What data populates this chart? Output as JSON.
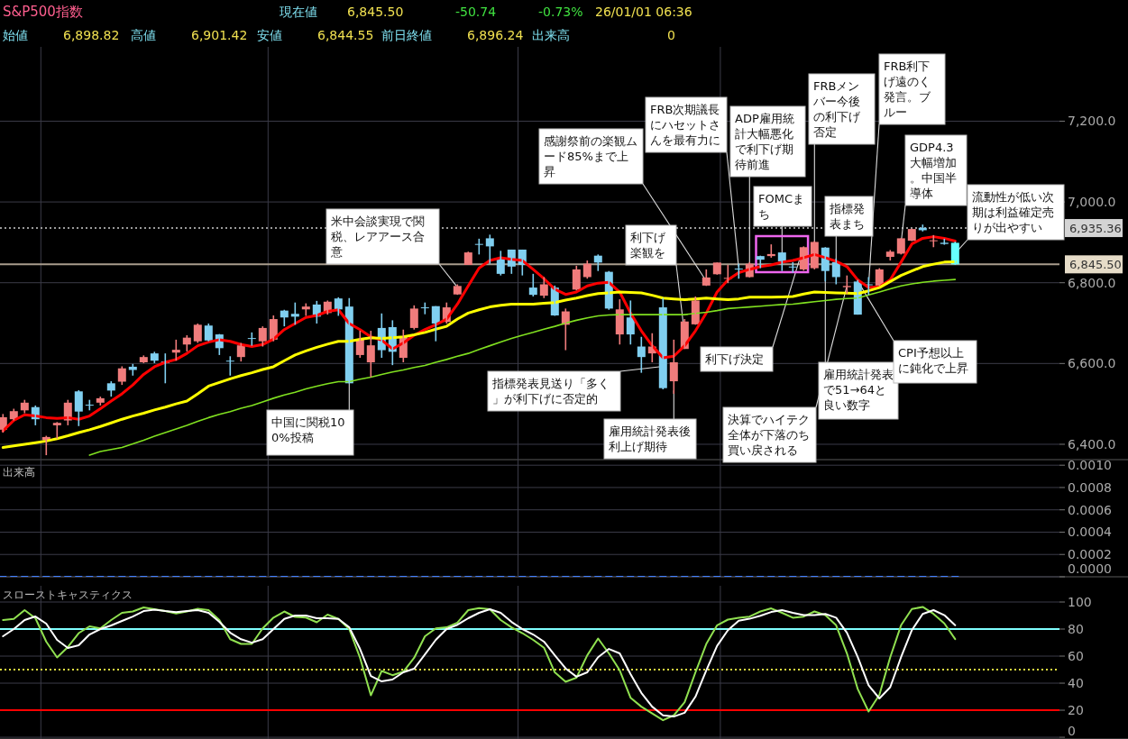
{
  "chart_data": [
    {
      "type": "candlestick",
      "title": "S&P500指数",
      "categories": [
        null,
        null,
        null,
        null,
        null,
        null,
        null,
        null,
        null,
        null,
        null,
        null,
        null,
        null,
        null,
        null,
        null,
        null,
        null,
        null,
        null,
        null,
        null,
        null,
        null,
        null,
        null,
        null,
        null,
        null,
        null,
        null,
        null,
        null,
        null,
        null,
        null,
        null,
        null,
        null,
        null,
        null,
        null,
        null,
        null,
        null,
        null,
        null,
        null,
        null,
        null,
        null,
        null,
        null,
        null,
        null,
        null,
        null,
        null,
        null,
        null,
        null,
        null,
        null,
        null,
        null,
        null,
        null,
        null,
        null,
        null,
        null,
        null,
        null,
        null,
        null,
        null,
        null,
        null,
        null,
        null,
        null,
        null,
        null,
        null,
        null,
        null,
        null,
        null
      ],
      "ohlc": [
        [
          6436,
          6475,
          6429,
          6467
        ],
        [
          6462,
          6488,
          6459,
          6482
        ],
        [
          6484,
          6510,
          6477,
          6503
        ],
        [
          6492,
          6496,
          6447,
          6462
        ],
        [
          6410,
          6421,
          6373,
          6418
        ],
        [
          6447,
          6455,
          6414,
          6453
        ],
        [
          6459,
          6510,
          6447,
          6503
        ],
        [
          6531,
          6534,
          6445,
          6481
        ],
        [
          6498,
          6510,
          6484,
          6496
        ],
        [
          6503,
          6518,
          6496,
          6514
        ],
        [
          6551,
          6556,
          6518,
          6533
        ],
        [
          6555,
          6593,
          6547,
          6588
        ],
        [
          6592,
          6599,
          6570,
          6584
        ],
        [
          6603,
          6620,
          6601,
          6616
        ],
        [
          6625,
          6629,
          6601,
          6607
        ],
        [
          6605,
          6625,
          6551,
          6601
        ],
        [
          6627,
          6659,
          6607,
          6634
        ],
        [
          6647,
          6670,
          6630,
          6664
        ],
        [
          6655,
          6699,
          6651,
          6696
        ],
        [
          6694,
          6699,
          6655,
          6657
        ],
        [
          6672,
          6673,
          6621,
          6638
        ],
        [
          6607,
          6618,
          6570,
          6605
        ],
        [
          6616,
          6651,
          6605,
          6645
        ],
        [
          6663,
          6677,
          6644,
          6661
        ],
        [
          6655,
          6692,
          6642,
          6688
        ],
        [
          6659,
          6719,
          6655,
          6710
        ],
        [
          6731,
          6733,
          6692,
          6714
        ],
        [
          6723,
          6751,
          6696,
          6716
        ],
        [
          6734,
          6749,
          6718,
          6741
        ],
        [
          6746,
          6755,
          6699,
          6716
        ],
        [
          6725,
          6756,
          6721,
          6753
        ],
        [
          6761,
          6764,
          6718,
          6734
        ],
        [
          6741,
          6762,
          6551,
          6551
        ],
        [
          6621,
          6681,
          6614,
          6659
        ],
        [
          6603,
          6681,
          6566,
          6645
        ],
        [
          6688,
          6724,
          6614,
          6633
        ],
        [
          6690,
          6707,
          6596,
          6629
        ],
        [
          6614,
          6684,
          6603,
          6666
        ],
        [
          6688,
          6744,
          6684,
          6736
        ],
        [
          6739,
          6751,
          6722,
          6737
        ],
        [
          6742,
          6742,
          6655,
          6699
        ],
        [
          6703,
          6751,
          6699,
          6739
        ],
        [
          6771,
          6796,
          6770,
          6792
        ],
        [
          6844,
          6877,
          6844,
          6875
        ],
        [
          6896,
          6909,
          6870,
          6894
        ],
        [
          6910,
          6919,
          6847,
          6890
        ],
        [
          6859,
          6879,
          6818,
          6822
        ],
        [
          6882,
          6882,
          6822,
          6840
        ],
        [
          6882,
          6882,
          6818,
          6844
        ],
        [
          6788,
          6822,
          6766,
          6770
        ],
        [
          6768,
          6814,
          6762,
          6796
        ],
        [
          6788,
          6793,
          6718,
          6719
        ],
        [
          6696,
          6736,
          6633,
          6729
        ],
        [
          6783,
          6842,
          6781,
          6833
        ],
        [
          6814,
          6855,
          6810,
          6847
        ],
        [
          6867,
          6870,
          6829,
          6850
        ],
        [
          6827,
          6829,
          6733,
          6736
        ],
        [
          6672,
          6759,
          6647,
          6734
        ],
        [
          6714,
          6756,
          6647,
          6672
        ],
        [
          6642,
          6666,
          6577,
          6616
        ],
        [
          6625,
          6675,
          6603,
          6642
        ],
        [
          6739,
          6762,
          6536,
          6539
        ],
        [
          6556,
          6659,
          6525,
          6603
        ],
        [
          6636,
          6710,
          6636,
          6704
        ],
        [
          6697,
          6766,
          6696,
          6756
        ],
        [
          6793,
          6833,
          6792,
          6813
        ],
        [
          6821,
          6850,
          6820,
          6850
        ],
        [
          6811,
          6844,
          6799,
          6812
        ],
        [
          6835,
          6847,
          6810,
          6833
        ],
        [
          6814,
          6851,
          6813,
          6847
        ],
        [
          6866,
          6867,
          6836,
          6857
        ],
        [
          6866,
          6895,
          6862,
          6871
        ],
        [
          6875,
          6875,
          6829,
          6853
        ],
        [
          6840,
          6851,
          6825,
          6839
        ],
        [
          6833,
          6890,
          6830,
          6888
        ],
        [
          6836,
          6903,
          6833,
          6901
        ],
        [
          6887,
          6888,
          6803,
          6829
        ],
        [
          6851,
          6860,
          6796,
          6814
        ],
        [
          6789,
          6818,
          6773,
          6792
        ],
        [
          6803,
          6807,
          6721,
          6721
        ],
        [
          6796,
          6814,
          6770,
          6795
        ],
        [
          6793,
          6836,
          6792,
          6833
        ],
        [
          6864,
          6881,
          6855,
          6877
        ],
        [
          6872,
          6910,
          6870,
          6910
        ],
        [
          6904,
          6934,
          6903,
          6933
        ],
        [
          6936,
          6944,
          6927,
          6930
        ],
        [
          6903,
          6918,
          6888,
          6905
        ],
        [
          6899,
          6909,
          6894,
          6896
        ],
        [
          6898.82,
          6901.42,
          6844.55,
          6845.5
        ]
      ],
      "colors": [
        "#f07c7c",
        "#f07c7c",
        "#f07c7c",
        "#80cff0",
        "#f07c7c",
        "#f07c7c",
        "#f07c7c",
        "#80cff0",
        "#80cff0",
        "#f07c7c",
        "#80cff0",
        "#f07c7c",
        "#80cff0",
        "#f07c7c",
        "#80cff0",
        "#80cff0",
        "#f07c7c",
        "#f07c7c",
        "#f07c7c",
        "#80cff0",
        "#80cff0",
        "#80cff0",
        "#f07c7c",
        "#80cff0",
        "#f07c7c",
        "#f07c7c",
        "#80cff0",
        "#80cff0",
        "#f07c7c",
        "#80cff0",
        "#f07c7c",
        "#80cff0",
        "#80cff0",
        "#f07c7c",
        "#f07c7c",
        "#80cff0",
        "#80cff0",
        "#f07c7c",
        "#f07c7c",
        "#80cff0",
        "#80cff0",
        "#f07c7c",
        "#f07c7c",
        "#f07c7c",
        "#80cff0",
        "#80cff0",
        "#80cff0",
        "#80cff0",
        "#80cff0",
        "#80cff0",
        "#f07c7c",
        "#80cff0",
        "#f07c7c",
        "#f07c7c",
        "#f07c7c",
        "#80cff0",
        "#80cff0",
        "#f07c7c",
        "#80cff0",
        "#80cff0",
        "#f07c7c",
        "#80cff0",
        "#f07c7c",
        "#f07c7c",
        "#f07c7c",
        "#f07c7c",
        "#f07c7c",
        "#f07c7c",
        "#80cff0",
        "#f07c7c",
        "#80cff0",
        "#f07c7c",
        "#80cff0",
        "#80cff0",
        "#f07c7c",
        "#f07c7c",
        "#80cff0",
        "#80cff0",
        "#f07c7c",
        "#80cff0",
        "#80cff0",
        "#f07c7c",
        "#f07c7c",
        "#f07c7c",
        "#f07c7c",
        "#80cff0",
        "#f07c7c",
        "#80cff0",
        "#66ffff"
      ],
      "series": [
        {
          "type": "line",
          "color": "#ff0000",
          "values": [
            6433,
            6459,
            6473,
            6470,
            6466,
            6464,
            6466,
            6462,
            6470,
            6488,
            6507,
            6525,
            6547,
            6573,
            6592,
            6603,
            6610,
            6625,
            6644,
            6653,
            6659,
            6655,
            6647,
            6642,
            6647,
            6660,
            6684,
            6699,
            6714,
            6719,
            6729,
            6733,
            6699,
            6684,
            6666,
            6658,
            6636,
            6651,
            6670,
            6684,
            6696,
            6710,
            6747,
            6792,
            6836,
            6855,
            6862,
            6858,
            6855,
            6833,
            6810,
            6784,
            6771,
            6777,
            6792,
            6799,
            6801,
            6777,
            6725,
            6681,
            6644,
            6614,
            6618,
            6644,
            6681,
            6725,
            6777,
            6807,
            6825,
            6833,
            6840,
            6844,
            6851,
            6855,
            6862,
            6870,
            6862,
            6853,
            6840,
            6807,
            6788,
            6790,
            6807,
            6851,
            6896,
            6910,
            6914,
            6910,
            6903
          ]
        },
        {
          "type": "line",
          "color": "#ffff00",
          "values": [
            6392,
            6396,
            6400,
            6404,
            6408,
            6414,
            6421,
            6429,
            6436,
            6444,
            6453,
            6462,
            6470,
            6477,
            6485,
            6492,
            6500,
            6507,
            6525,
            6544,
            6553,
            6562,
            6570,
            6577,
            6585,
            6592,
            6607,
            6621,
            6631,
            6640,
            6648,
            6655,
            6655,
            6660,
            6664,
            6662,
            6664,
            6666,
            6671,
            6677,
            6685,
            6692,
            6710,
            6725,
            6733,
            6740,
            6744,
            6747,
            6747,
            6747,
            6749,
            6751,
            6757,
            6762,
            6768,
            6773,
            6775,
            6777,
            6776,
            6775,
            6769,
            6762,
            6760,
            6758,
            6760,
            6762,
            6760,
            6758,
            6760,
            6764,
            6764,
            6764,
            6765,
            6766,
            6772,
            6777,
            6776,
            6775,
            6774,
            6773,
            6780,
            6788,
            6803,
            6818,
            6829,
            6840,
            6846,
            6851,
            6852
          ]
        },
        {
          "type": "line",
          "color": "#80e020",
          "values": [
            null,
            null,
            null,
            null,
            null,
            null,
            null,
            null,
            6373,
            6382,
            6387,
            6392,
            6401,
            6410,
            6420,
            6429,
            6438,
            6447,
            6457,
            6466,
            6474,
            6481,
            6489,
            6496,
            6505,
            6514,
            6522,
            6529,
            6537,
            6544,
            6550,
            6555,
            6555,
            6561,
            6566,
            6573,
            6579,
            6584,
            6590,
            6595,
            6603,
            6610,
            6618,
            6625,
            6635,
            6644,
            6653,
            6662,
            6670,
            6677,
            6685,
            6692,
            6700,
            6707,
            6713,
            6718,
            6720,
            6721,
            6721,
            6721,
            6721,
            6721,
            6721,
            6721,
            6724,
            6727,
            6731,
            6736,
            6738,
            6740,
            6742,
            6744,
            6746,
            6747,
            6750,
            6753,
            6756,
            6759,
            6761,
            6762,
            6770,
            6777,
            6785,
            6792,
            6797,
            6801,
            6804,
            6806,
            6808
          ]
        }
      ],
      "ylim": [
        6362,
        7384
      ],
      "yticks": [
        {
          "value": 6400,
          "label": "6,400.0"
        },
        {
          "value": 6600,
          "label": "6,600.0"
        },
        {
          "value": 6800,
          "label": "6,800.0"
        },
        {
          "value": 7000,
          "label": "7,000.0"
        },
        {
          "value": 7200,
          "label": "7,200.0"
        }
      ],
      "grid": true,
      "ref_lines": [
        {
          "axis": "y",
          "value": 6935.36,
          "label": "6,935.36",
          "color": "#9a9a9a",
          "line_style": "dotted"
        },
        {
          "axis": "y",
          "value": 6845.5,
          "label": "6,845.50",
          "color": "#a89c8c",
          "line_style": "solid"
        }
      ],
      "annotations": [
        "現在値",
        "6,845.50",
        "-50.74",
        "-0.73%",
        "26/01/01 06:36",
        "始値",
        "6,898.82",
        "高値",
        "6,901.42",
        "安値",
        "6,844.55",
        "前日終値",
        "6,896.24",
        "出来高",
        "0",
        "米中会談実現で関税、レアアース合意",
        "中国に関税100%投稿",
        "感謝祭前の楽観ムード85%まで上昇",
        "FRB次期議長にハセットさんを最有力に",
        "ADP雇用統計大幅悪化で利下げ期待前進",
        "FRBメンバー今後の利下げ否定",
        "FRB利下げ遠のく発言。ブルー",
        "GDP4.3大幅増加。中国半導体",
        "FOMCまち",
        "指標発表まち",
        "流動性が低い次期は利益確定売りが出やすい",
        "利下げ楽観を",
        "利下げ決定",
        "指標発表見送り「多く」が利下げに否定的",
        "雇用統計発表後利上げ期待",
        "決算でハイテク全体が下落のち買い戻される",
        "雇用統計発表で51→64と良い数字",
        "CPI予想以上に鈍化で上昇"
      ]
    },
    {
      "type": "bar",
      "title": "出来高",
      "color": "#4080ff",
      "categories": [
        null,
        null,
        null,
        null,
        null,
        null,
        null,
        null,
        null,
        null,
        null,
        null,
        null,
        null,
        null,
        null,
        null,
        null,
        null,
        null,
        null,
        null,
        null,
        null,
        null,
        null,
        null,
        null,
        null,
        null,
        null,
        null,
        null,
        null,
        null,
        null,
        null,
        null,
        null,
        null,
        null,
        null,
        null,
        null,
        null,
        null,
        null,
        null,
        null,
        null,
        null,
        null,
        null,
        null,
        null,
        null,
        null,
        null,
        null,
        null,
        null,
        null,
        null,
        null,
        null,
        null,
        null,
        null,
        null,
        null,
        null,
        null,
        null,
        null,
        null,
        null,
        null,
        null,
        null,
        null,
        null,
        null,
        null,
        null,
        null,
        null,
        null,
        null,
        null
      ],
      "values": [
        0,
        0,
        0,
        0,
        0,
        0,
        0,
        0,
        0,
        0,
        0,
        0,
        0,
        0,
        0,
        0,
        0,
        0,
        0,
        0,
        0,
        0,
        0,
        0,
        0,
        0,
        0,
        0,
        0,
        0,
        0,
        0,
        0,
        0,
        0,
        0,
        0,
        0,
        0,
        0,
        0,
        0,
        0,
        0,
        0,
        0,
        0,
        0,
        0,
        0,
        0,
        0,
        0,
        0,
        0,
        0,
        0,
        0,
        0,
        0,
        0,
        0,
        0,
        0,
        0,
        0,
        0,
        0,
        0,
        0,
        0,
        0,
        0,
        0,
        0,
        0,
        0,
        0,
        0,
        0,
        0,
        0,
        0,
        0,
        0,
        0,
        0,
        0,
        0
      ],
      "ylim": [
        0,
        0.00105
      ],
      "yticks": [
        {
          "value": 0,
          "label": "0.0000"
        },
        {
          "value": 0.0002,
          "label": "0.0002"
        },
        {
          "value": 0.0004,
          "label": "0.0004"
        },
        {
          "value": 0.0006,
          "label": "0.0006"
        },
        {
          "value": 0.0008,
          "label": "0.0008"
        },
        {
          "value": 0.001,
          "label": "0.0010"
        }
      ],
      "grid": true
    },
    {
      "type": "line",
      "title": "スローストキャスティクス",
      "categories": [
        null,
        null,
        null,
        null,
        null,
        null,
        null,
        null,
        null,
        null,
        null,
        null,
        null,
        null,
        null,
        null,
        null,
        null,
        null,
        null,
        null,
        null,
        null,
        null,
        null,
        null,
        null,
        null,
        null,
        null,
        null,
        null,
        null,
        null,
        null,
        null,
        null,
        null,
        null,
        null,
        null,
        null,
        null,
        null,
        null,
        null,
        null,
        null,
        null,
        null,
        null,
        null,
        null,
        null,
        null,
        null,
        null,
        null,
        null,
        null,
        null,
        null,
        null,
        null,
        null,
        null,
        null,
        null,
        null,
        null,
        null,
        null,
        null,
        null,
        null,
        null,
        null,
        null,
        null,
        null,
        null,
        null,
        null,
        null,
        null,
        null,
        null,
        null,
        null
      ],
      "series": [
        {
          "color": "#90e050",
          "values": [
            86.7,
            87.5,
            94,
            88,
            70.7,
            59,
            66.7,
            77,
            82,
            80.5,
            86.7,
            92,
            93,
            96,
            94.7,
            93.3,
            91.5,
            93,
            95,
            94,
            86.7,
            72.5,
            69,
            69,
            80.5,
            88.5,
            93,
            89,
            88.5,
            85,
            90.7,
            87.5,
            80,
            58.7,
            31,
            49,
            45.9,
            48.5,
            58.7,
            74.7,
            80.5,
            81.3,
            84.8,
            94,
            95.5,
            94.7,
            86.7,
            81.3,
            77,
            72,
            66.2,
            48,
            41,
            44,
            60.6,
            73,
            62,
            49.5,
            29.2,
            22.6,
            17.6,
            12.6,
            16.2,
            25.9,
            48,
            69,
            82.8,
            87,
            88.4,
            89.2,
            93,
            95.3,
            92,
            88.4,
            89.2,
            93,
            90.3,
            82.8,
            62,
            35.6,
            19,
            31.4,
            59.2,
            82.8,
            94.8,
            96.4,
            91.2,
            84.2,
            72.6
          ]
        },
        {
          "color": "#ffffff",
          "values": [
            74.7,
            80,
            86.7,
            89.3,
            84,
            72,
            66,
            68,
            76,
            80,
            82.7,
            86,
            89.3,
            93.3,
            94.4,
            93.3,
            92.5,
            93.3,
            94,
            92,
            85.3,
            77.3,
            72.5,
            69.9,
            72.5,
            80,
            87.5,
            90,
            90,
            88,
            88,
            87.5,
            81.3,
            65.3,
            45.3,
            41.3,
            42.7,
            48,
            50.7,
            61.3,
            72,
            80,
            83.2,
            88,
            92,
            94.7,
            92,
            85.3,
            80,
            76,
            70.7,
            60.6,
            50.9,
            44.8,
            48,
            59.2,
            65.3,
            62,
            46.7,
            32.8,
            22.6,
            16.2,
            15.3,
            18.1,
            30,
            49.5,
            67.6,
            79.2,
            86.2,
            87.6,
            89.8,
            92.6,
            94,
            92,
            90.3,
            90.3,
            91.2,
            88.4,
            77.3,
            59.2,
            38.4,
            28.7,
            37,
            59.2,
            79.2,
            91.2,
            94,
            90.3,
            82.8
          ]
        }
      ],
      "ylim": [
        -1.3,
        112
      ],
      "yticks": [
        0,
        20,
        40,
        60,
        80,
        100
      ],
      "grid": true,
      "ref_lines": [
        {
          "axis": "y",
          "value": 80,
          "color": "#80ffff",
          "line_style": "solid"
        },
        {
          "axis": "y",
          "value": 50,
          "color": "#e0e040",
          "line_style": "dotted"
        },
        {
          "axis": "y",
          "value": 20,
          "color": "#ff0000",
          "line_style": "solid"
        }
      ]
    }
  ]
}
